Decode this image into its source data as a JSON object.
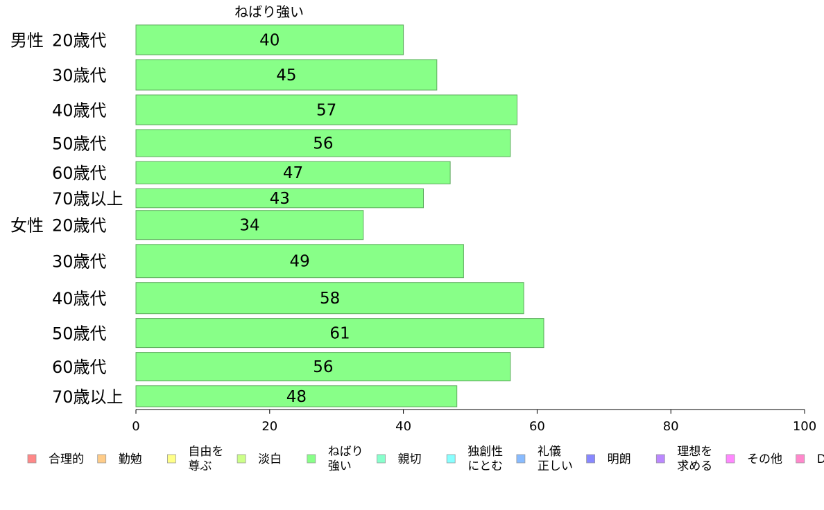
{
  "chart_data": {
    "type": "bar",
    "orientation": "horizontal",
    "title": "ねばり強い",
    "xlabel": "",
    "ylabel": "",
    "xlim": [
      0,
      100
    ],
    "x_ticks": [
      "0",
      "20",
      "40",
      "60",
      "80",
      "100"
    ],
    "grid": false,
    "legend_position": "bottom",
    "bar_color": "#88FF88",
    "bar_edge_color": "#5DAA5D",
    "groups": [
      {
        "label": "男性",
        "categories": [
          "20歳代",
          "30歳代",
          "40歳代",
          "50歳代",
          "60歳代",
          "70歳以上"
        ],
        "values": [
          40,
          45,
          57,
          56,
          47,
          43
        ],
        "value_labels": [
          "40",
          "45",
          "57",
          "56",
          "47",
          "43"
        ],
        "weights": [
          44,
          45,
          44,
          40,
          33,
          28
        ]
      },
      {
        "label": "女性",
        "categories": [
          "20歳代",
          "30歳代",
          "40歳代",
          "50歳代",
          "60歳代",
          "70歳以上"
        ],
        "values": [
          34,
          49,
          58,
          61,
          56,
          48
        ],
        "value_labels": [
          "34",
          "49",
          "58",
          "61",
          "56",
          "48"
        ],
        "weights": [
          43,
          49,
          46,
          43,
          42,
          31
        ]
      }
    ],
    "legend": [
      {
        "lines": [
          "合理的"
        ],
        "color": "#FF8888"
      },
      {
        "lines": [
          "勤勉"
        ],
        "color": "#FFCC88"
      },
      {
        "lines": [
          "自由を",
          "尊ぶ"
        ],
        "color": "#FFFF88"
      },
      {
        "lines": [
          "淡白"
        ],
        "color": "#CCFF88"
      },
      {
        "lines": [
          "ねばり",
          "強い"
        ],
        "color": "#88FF88"
      },
      {
        "lines": [
          "親切"
        ],
        "color": "#88FFCC"
      },
      {
        "lines": [
          "独創性",
          "にとむ"
        ],
        "color": "#88FFFF"
      },
      {
        "lines": [
          "礼儀",
          "正しい"
        ],
        "color": "#88BBFF"
      },
      {
        "lines": [
          "明朗"
        ],
        "color": "#8888FF"
      },
      {
        "lines": [
          "理想を",
          "求める"
        ],
        "color": "#BB88FF"
      },
      {
        "lines": [
          "その他"
        ],
        "color": "#FF88FF"
      },
      {
        "lines": [
          "D"
        ],
        "color": "#FF88CC"
      }
    ]
  }
}
